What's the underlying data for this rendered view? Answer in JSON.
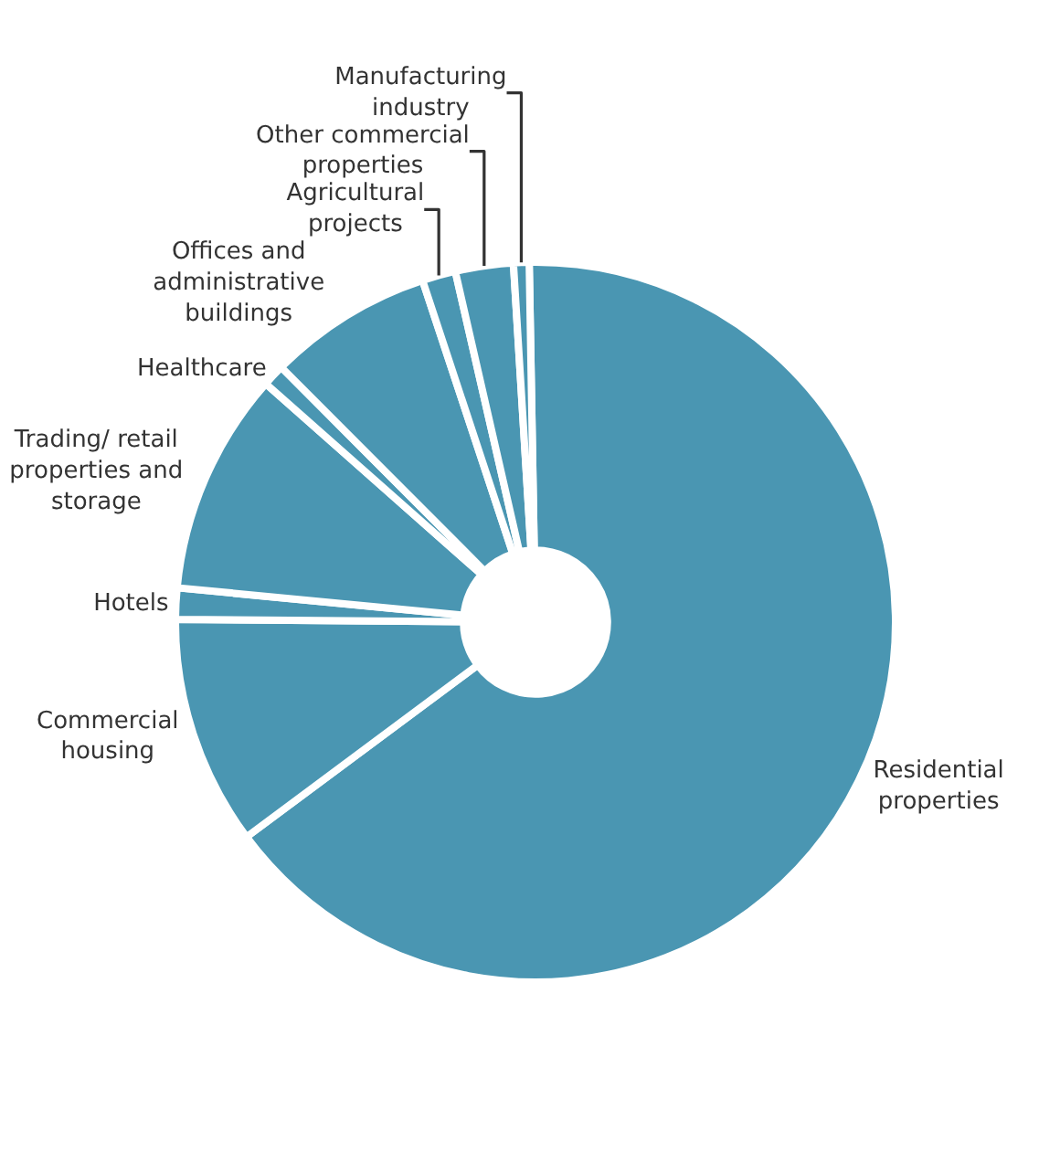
{
  "chart_data": {
    "type": "donut",
    "categories": [
      "Residential properties",
      "Commercial housing",
      "Hotels",
      "Trading/ retail properties and storage",
      "Healthcare",
      "Offices and administrative buildings",
      "Agricultural projects",
      "Other commercial properties",
      "Manufacturing industry"
    ],
    "values": [
      65.1,
      10.3,
      1.4,
      10,
      1,
      7.4,
      1.5,
      2.6,
      0.7
    ],
    "colors": [
      "#4a96b2",
      "#4a96b2",
      "#4a96b2",
      "#4a96b2",
      "#4a96b2",
      "#4a96b2",
      "#4a96b2",
      "#4a96b2",
      "#4a96b2"
    ],
    "legend": false
  }
}
